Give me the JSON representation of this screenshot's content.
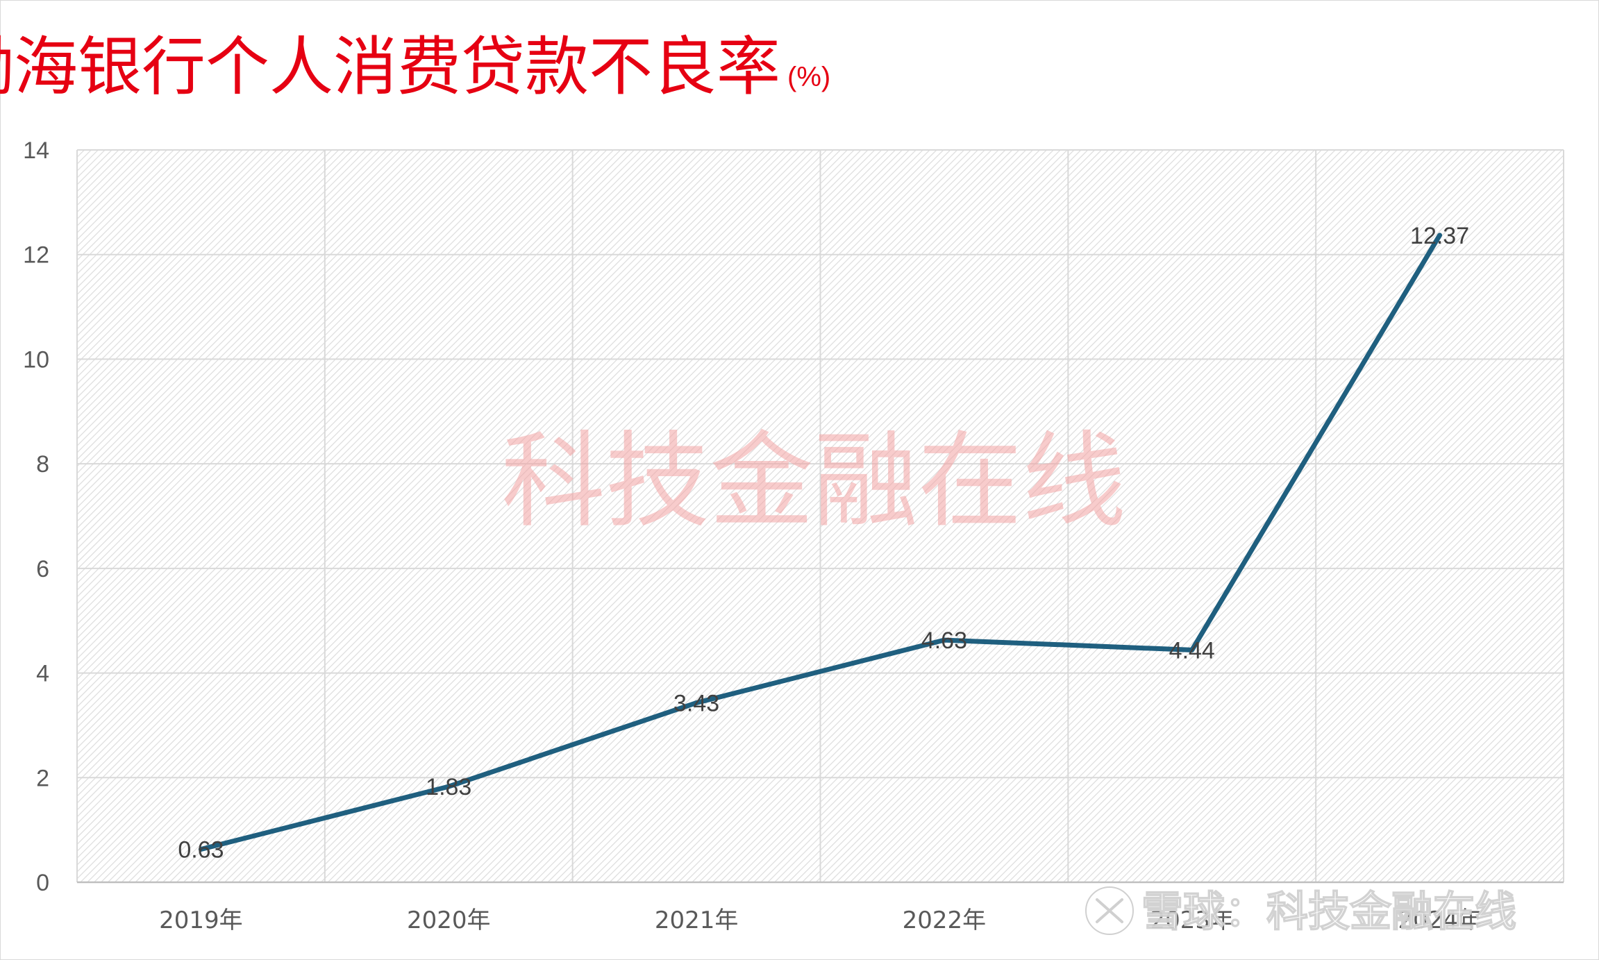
{
  "chart_data": {
    "type": "line",
    "title": "渤海银行个人消费贷款不良率",
    "title_unit": "(%)",
    "categories": [
      "2019年",
      "2020年",
      "2021年",
      "2022年",
      "2023年",
      "2024年"
    ],
    "series": [
      {
        "values": [
          0.63,
          1.83,
          3.43,
          4.63,
          4.44,
          12.37
        ],
        "labels": [
          "0.63",
          "1.83",
          "3.43",
          "4.63",
          "4.44",
          "12.37"
        ],
        "color": "#1f5f7f"
      }
    ],
    "ylim": [
      0,
      14
    ],
    "yticks": [
      "0",
      "2",
      "4",
      "6",
      "8",
      "10",
      "12",
      "14"
    ],
    "grid": true,
    "plot_background": "diagonal-hatch"
  },
  "watermarks": {
    "center": "科技金融在线",
    "corner": "雪球：科技金融在线"
  },
  "colors": {
    "title": "#e60012",
    "line": "#1f5f7f",
    "grid": "#d9d9d9",
    "tick_text": "#595959",
    "label_text": "#404040",
    "watermark_center": "#f4a3a3"
  }
}
